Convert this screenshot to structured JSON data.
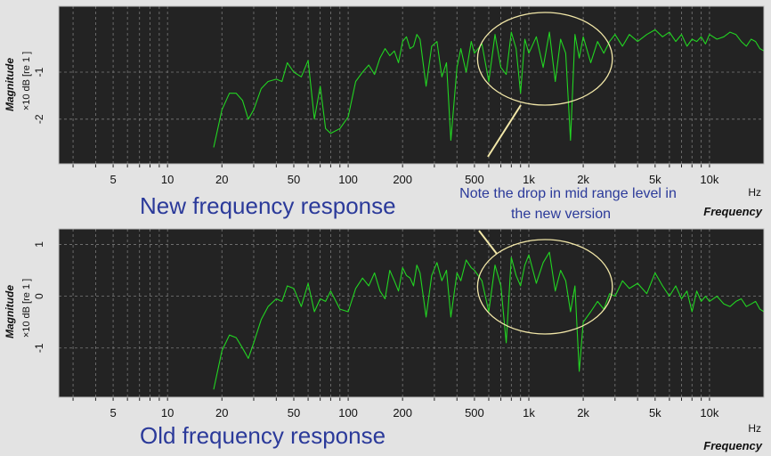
{
  "chart_data": [
    {
      "type": "line",
      "title": "",
      "caption": "New frequency response",
      "xlabel": "Frequency",
      "xunit": "Hz",
      "ylabel": "Magnitude",
      "yunit": "×10 dB [re 1 ]",
      "xscale": "log",
      "xlim": [
        2.5,
        20000
      ],
      "ylim": [
        -2.95,
        0.4
      ],
      "yticks": [
        -1,
        -2
      ],
      "ytick_labels": [
        "-1",
        "-2"
      ],
      "xticks": [
        5,
        10,
        20,
        50,
        100,
        200,
        500,
        1000,
        2000,
        5000,
        10000
      ],
      "xtick_labels": [
        "5",
        "10",
        "20",
        "50",
        "100",
        "200",
        "500",
        "1k",
        "2k",
        "5k",
        "10k"
      ],
      "grid": true,
      "annotation": {
        "text_lines": [
          "Note the drop in mid range level in",
          "the new version"
        ],
        "highlight_range_hz": [
          520,
          2900
        ]
      },
      "series": [
        {
          "color": "#22d422",
          "x": [
            18,
            20,
            22,
            24,
            26,
            28,
            30,
            33,
            36,
            40,
            43,
            46,
            50,
            55,
            60,
            65,
            70,
            75,
            80,
            90,
            100,
            110,
            120,
            130,
            140,
            150,
            160,
            170,
            180,
            190,
            200,
            210,
            220,
            230,
            240,
            250,
            270,
            290,
            310,
            330,
            350,
            370,
            400,
            420,
            450,
            480,
            500,
            550,
            600,
            650,
            700,
            750,
            800,
            850,
            900,
            950,
            1000,
            1100,
            1200,
            1300,
            1400,
            1500,
            1600,
            1700,
            1800,
            1900,
            2000,
            2200,
            2400,
            2600,
            2800,
            3000,
            3300,
            3600,
            4000,
            4500,
            5000,
            5500,
            6000,
            6500,
            7000,
            7500,
            8000,
            8500,
            9000,
            9500,
            10000,
            11000,
            12000,
            13000,
            14000,
            15000,
            16000,
            17000,
            18000,
            19000,
            20000
          ],
          "y": [
            -2.6,
            -1.8,
            -1.45,
            -1.45,
            -1.6,
            -2.0,
            -1.8,
            -1.35,
            -1.2,
            -1.15,
            -1.2,
            -0.8,
            -1.0,
            -1.1,
            -0.75,
            -2.0,
            -1.3,
            -2.2,
            -2.3,
            -2.2,
            -1.95,
            -1.2,
            -1.0,
            -0.85,
            -1.05,
            -0.7,
            -0.5,
            -0.65,
            -0.55,
            -0.8,
            -0.35,
            -0.25,
            -0.5,
            -0.45,
            -0.2,
            -0.3,
            -1.3,
            -0.45,
            -0.35,
            -1.1,
            -0.8,
            -2.45,
            -0.9,
            -0.5,
            -1.0,
            -0.35,
            -0.6,
            -0.4,
            -1.2,
            -0.2,
            -0.9,
            -1.05,
            -0.15,
            -0.5,
            -1.45,
            -0.3,
            -0.6,
            -0.25,
            -0.9,
            -0.15,
            -1.2,
            -0.3,
            -0.6,
            -2.45,
            -0.2,
            -0.7,
            -0.25,
            -0.8,
            -0.35,
            -0.6,
            -0.35,
            -0.2,
            -0.45,
            -0.2,
            -0.35,
            -0.2,
            -0.1,
            -0.25,
            -0.15,
            -0.35,
            -0.2,
            -0.45,
            -0.3,
            -0.35,
            -0.25,
            -0.4,
            -0.2,
            -0.3,
            -0.25,
            -0.15,
            -0.2,
            -0.35,
            -0.45,
            -0.3,
            -0.35,
            -0.5,
            -0.55
          ]
        }
      ]
    },
    {
      "type": "line",
      "title": "",
      "caption": "Old frequency response",
      "xlabel": "Frequency",
      "xunit": "Hz",
      "ylabel": "Magnitude",
      "yunit": "×10 dB [re 1 ]",
      "xscale": "log",
      "xlim": [
        2.5,
        20000
      ],
      "ylim": [
        -1.95,
        1.3
      ],
      "yticks": [
        1,
        0,
        -1
      ],
      "ytick_labels": [
        "1",
        "0",
        "-1"
      ],
      "xticks": [
        5,
        10,
        20,
        50,
        100,
        200,
        500,
        1000,
        2000,
        5000,
        10000
      ],
      "xtick_labels": [
        "5",
        "10",
        "20",
        "50",
        "100",
        "200",
        "500",
        "1k",
        "2k",
        "5k",
        "10k"
      ],
      "grid": true,
      "annotation": {
        "highlight_range_hz": [
          520,
          2900
        ]
      },
      "series": [
        {
          "color": "#22d422",
          "x": [
            18,
            20,
            22,
            24,
            26,
            28,
            30,
            33,
            36,
            40,
            43,
            46,
            50,
            55,
            60,
            65,
            70,
            75,
            80,
            90,
            100,
            110,
            120,
            130,
            140,
            150,
            160,
            170,
            180,
            190,
            200,
            210,
            220,
            230,
            240,
            250,
            270,
            290,
            310,
            330,
            350,
            370,
            400,
            420,
            450,
            480,
            500,
            550,
            600,
            650,
            700,
            750,
            800,
            850,
            900,
            950,
            1000,
            1100,
            1200,
            1300,
            1400,
            1500,
            1600,
            1700,
            1800,
            1900,
            2000,
            2200,
            2400,
            2600,
            2800,
            3000,
            3300,
            3600,
            4000,
            4500,
            5000,
            5500,
            6000,
            6500,
            7000,
            7500,
            8000,
            8500,
            9000,
            9500,
            10000,
            11000,
            12000,
            13000,
            14000,
            15000,
            16000,
            17000,
            18000,
            19000,
            20000
          ],
          "y": [
            -1.8,
            -1.05,
            -0.75,
            -0.8,
            -1.0,
            -1.2,
            -0.9,
            -0.45,
            -0.2,
            -0.05,
            -0.1,
            0.2,
            0.15,
            -0.2,
            0.25,
            -0.3,
            -0.05,
            -0.1,
            0.1,
            -0.25,
            -0.3,
            0.15,
            0.35,
            0.2,
            0.45,
            0.1,
            -0.05,
            0.5,
            0.3,
            0.1,
            0.55,
            0.4,
            0.35,
            0.2,
            0.6,
            0.45,
            -0.4,
            0.4,
            0.65,
            0.3,
            0.5,
            -0.4,
            0.45,
            0.3,
            0.7,
            0.55,
            0.5,
            0.3,
            -0.3,
            0.6,
            0.2,
            -0.9,
            0.75,
            0.4,
            0.2,
            0.6,
            0.8,
            0.25,
            0.65,
            0.85,
            0.1,
            0.5,
            0.3,
            -0.3,
            0.2,
            -1.45,
            -0.5,
            -0.3,
            -0.1,
            -0.25,
            0.05,
            0.0,
            0.3,
            0.15,
            0.25,
            0.05,
            0.45,
            0.2,
            0.0,
            0.2,
            -0.05,
            0.1,
            -0.3,
            0.1,
            -0.1,
            0.0,
            -0.1,
            0.0,
            -0.15,
            -0.2,
            -0.1,
            -0.05,
            -0.2,
            -0.15,
            -0.1,
            -0.25,
            -0.3
          ]
        }
      ]
    }
  ]
}
